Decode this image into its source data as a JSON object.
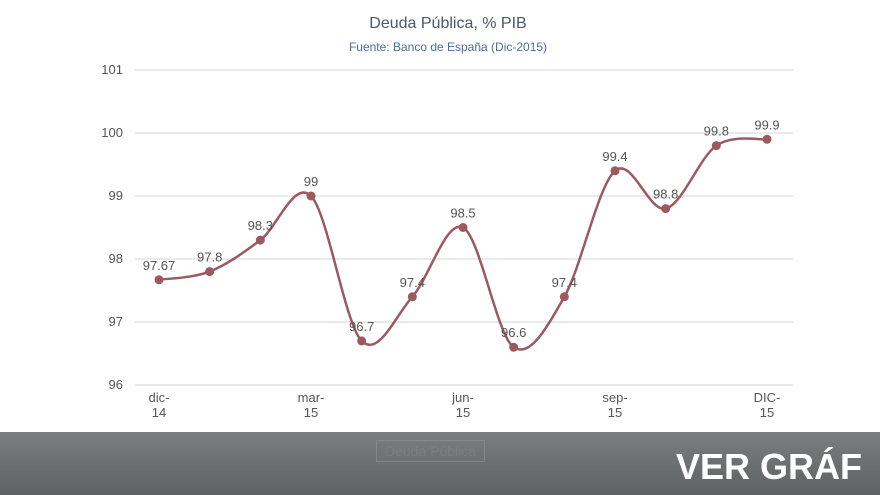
{
  "chart_data": {
    "type": "line",
    "title": "Deuda Pública, % PIB",
    "subtitle": "Fuente: Banco de España (Dic-2015)",
    "categories": [
      "dic-14",
      null,
      null,
      "mar-15",
      null,
      null,
      "jun-15",
      null,
      null,
      "sep-15",
      null,
      null,
      "DIC-15"
    ],
    "series": [
      {
        "name": "Deuda Pública",
        "color": "#9c5a60",
        "values": [
          97.67,
          97.8,
          98.3,
          99,
          96.7,
          97.4,
          98.5,
          96.6,
          97.4,
          99.4,
          98.8,
          99.8,
          99.9
        ]
      }
    ],
    "ylim": [
      96,
      101
    ],
    "yticks": [
      96,
      97,
      98,
      99,
      100,
      101
    ],
    "grid": true,
    "banner": "VER GRÁF"
  }
}
